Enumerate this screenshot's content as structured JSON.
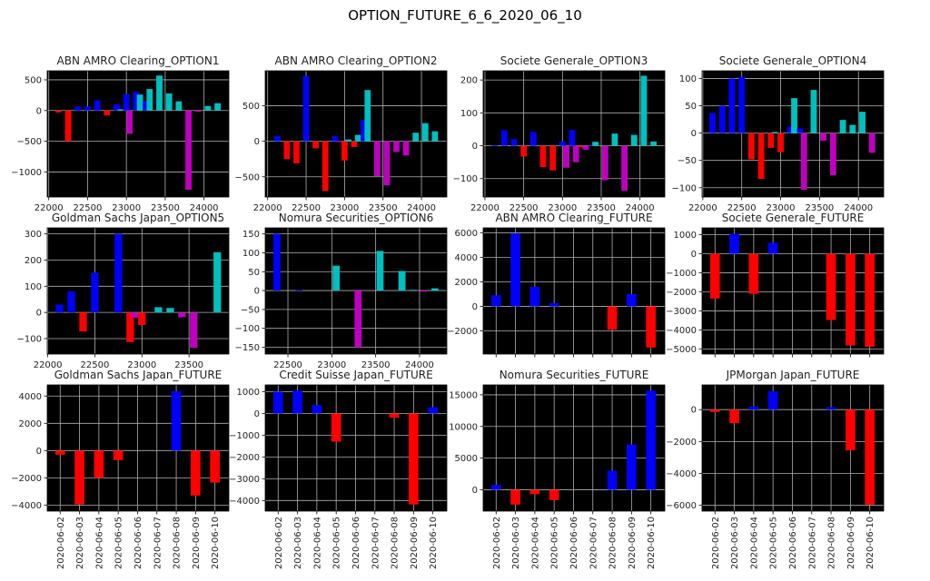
{
  "figure_title": "OPTION_FUTURE_6_6_2020_06_10",
  "colors": {
    "b": "#0000ff",
    "r": "#ff0000",
    "m": "#bf00bf",
    "c": "#00bfbf",
    "background": "#000000",
    "grid": "#b0b0b0"
  },
  "chart_data": [
    {
      "type": "bar",
      "title": "ABN AMRO Clearing_OPTION1",
      "xlim": [
        21980,
        24320
      ],
      "ylim": [
        -1407,
        647
      ],
      "xticks": [
        22000,
        22500,
        23000,
        23500,
        24000
      ],
      "yticks": [
        -1000,
        -500,
        0,
        500
      ],
      "bar_width": 80,
      "bars": [
        [
          22125,
          -30,
          "r"
        ],
        [
          22250,
          -500,
          "r"
        ],
        [
          22375,
          65,
          "b"
        ],
        [
          22500,
          65,
          "b"
        ],
        [
          22625,
          165,
          "b"
        ],
        [
          22750,
          -80,
          "r"
        ],
        [
          22875,
          100,
          "b"
        ],
        [
          22925,
          20,
          "c"
        ],
        [
          23000,
          270,
          "b"
        ],
        [
          23040,
          -380,
          "m"
        ],
        [
          23125,
          300,
          "b"
        ],
        [
          23175,
          260,
          "c"
        ],
        [
          23250,
          150,
          "b"
        ],
        [
          23300,
          350,
          "c"
        ],
        [
          23425,
          570,
          "c"
        ],
        [
          23550,
          280,
          "c"
        ],
        [
          23675,
          150,
          "c"
        ],
        [
          23800,
          -1290,
          "m"
        ],
        [
          23925,
          -20,
          "m"
        ],
        [
          24050,
          75,
          "c"
        ],
        [
          24175,
          120,
          "c"
        ]
      ]
    },
    {
      "type": "bar",
      "title": "ABN AMRO Clearing_OPTION2",
      "xlim": [
        21968,
        24330
      ],
      "ylim": [
        -784,
        991
      ],
      "xticks": [
        22000,
        22500,
        23000,
        23500,
        24000
      ],
      "yticks": [
        -500,
        0,
        500
      ],
      "bar_width": 80,
      "bars": [
        [
          22125,
          75,
          "b"
        ],
        [
          22250,
          -250,
          "r"
        ],
        [
          22375,
          -310,
          "r"
        ],
        [
          22500,
          920,
          "b"
        ],
        [
          22625,
          -100,
          "r"
        ],
        [
          22750,
          -700,
          "r"
        ],
        [
          22875,
          70,
          "b"
        ],
        [
          22925,
          -10,
          "m"
        ],
        [
          23000,
          -270,
          "r"
        ],
        [
          23050,
          25,
          "c"
        ],
        [
          23125,
          -80,
          "r"
        ],
        [
          23175,
          90,
          "c"
        ],
        [
          23250,
          300,
          "b"
        ],
        [
          23300,
          720,
          "c"
        ],
        [
          23425,
          -490,
          "m"
        ],
        [
          23550,
          -620,
          "m"
        ],
        [
          23675,
          -150,
          "m"
        ],
        [
          23800,
          -200,
          "m"
        ],
        [
          23925,
          120,
          "c"
        ],
        [
          24050,
          255,
          "c"
        ],
        [
          24175,
          140,
          "c"
        ]
      ]
    },
    {
      "type": "bar",
      "title": "Societe Generale_OPTION3",
      "xlim": [
        21977,
        24320
      ],
      "ylim": [
        -156,
        228
      ],
      "xticks": [
        22000,
        22500,
        23000,
        23500,
        24000
      ],
      "yticks": [
        -100,
        0,
        100,
        200
      ],
      "bar_width": 80,
      "bars": [
        [
          22125,
          2,
          "b"
        ],
        [
          22250,
          47,
          "b"
        ],
        [
          22375,
          20,
          "b"
        ],
        [
          22500,
          -33,
          "r"
        ],
        [
          22625,
          42,
          "b"
        ],
        [
          22750,
          -65,
          "r"
        ],
        [
          22875,
          -75,
          "r"
        ],
        [
          23000,
          13,
          "b"
        ],
        [
          23050,
          -67,
          "m"
        ],
        [
          23125,
          48,
          "b"
        ],
        [
          23175,
          -50,
          "m"
        ],
        [
          23250,
          -5,
          "r"
        ],
        [
          23300,
          -12,
          "m"
        ],
        [
          23375,
          2,
          "b"
        ],
        [
          23425,
          12,
          "c"
        ],
        [
          23550,
          -105,
          "m"
        ],
        [
          23675,
          37,
          "c"
        ],
        [
          23800,
          -137,
          "m"
        ],
        [
          23925,
          33,
          "c"
        ],
        [
          24050,
          213,
          "c"
        ],
        [
          24175,
          13,
          "c"
        ]
      ]
    },
    {
      "type": "bar",
      "title": "Societe Generale_OPTION4",
      "xlim": [
        21990,
        24324
      ],
      "ylim": [
        -117,
        114
      ],
      "xticks": [
        22000,
        22500,
        23000,
        23500,
        24000
      ],
      "yticks": [
        -100,
        -50,
        0,
        50,
        100
      ],
      "bar_width": 80,
      "bars": [
        [
          22125,
          37,
          "b"
        ],
        [
          22250,
          50,
          "b"
        ],
        [
          22375,
          100,
          "b"
        ],
        [
          22500,
          103,
          "b"
        ],
        [
          22625,
          -48,
          "r"
        ],
        [
          22750,
          -84,
          "r"
        ],
        [
          22875,
          -27,
          "r"
        ],
        [
          22925,
          2,
          "c"
        ],
        [
          23000,
          -35,
          "r"
        ],
        [
          23125,
          12,
          "b"
        ],
        [
          23175,
          64,
          "c"
        ],
        [
          23250,
          8,
          "b"
        ],
        [
          23300,
          -104,
          "m"
        ],
        [
          23425,
          79,
          "c"
        ],
        [
          23550,
          -14,
          "m"
        ],
        [
          23675,
          -77,
          "m"
        ],
        [
          23800,
          24,
          "c"
        ],
        [
          23925,
          15,
          "c"
        ],
        [
          24050,
          39,
          "c"
        ],
        [
          24175,
          -36,
          "m"
        ]
      ]
    },
    {
      "type": "bar",
      "title": "Goldman Sachs Japan_OPTION5",
      "xlim": [
        21994,
        23923
      ],
      "ylim": [
        -159,
        323
      ],
      "xticks": [
        22000,
        22500,
        23000,
        23500
      ],
      "yticks": [
        -100,
        0,
        100,
        200,
        300
      ],
      "bar_width": 80,
      "bars": [
        [
          22125,
          30,
          "b"
        ],
        [
          22250,
          80,
          "b"
        ],
        [
          22375,
          -73,
          "r"
        ],
        [
          22500,
          152,
          "b"
        ],
        [
          22750,
          300,
          "b"
        ],
        [
          22875,
          -113,
          "r"
        ],
        [
          22925,
          -20,
          "m"
        ],
        [
          23000,
          -48,
          "r"
        ],
        [
          23175,
          20,
          "c"
        ],
        [
          23300,
          17,
          "c"
        ],
        [
          23425,
          -18,
          "m"
        ],
        [
          23550,
          -135,
          "m"
        ],
        [
          23800,
          230,
          "c"
        ]
      ]
    },
    {
      "type": "bar",
      "title": "Nomura Securities_OPTION6",
      "xlim": [
        22241,
        24311
      ],
      "ylim": [
        -168,
        166
      ],
      "xticks": [
        22500,
        23000,
        23500,
        24000
      ],
      "yticks": [
        -150,
        -100,
        -50,
        0,
        50,
        100,
        150
      ],
      "bar_width": 80,
      "bars": [
        [
          22375,
          150,
          "b"
        ],
        [
          22625,
          2,
          "b"
        ],
        [
          23050,
          66,
          "c"
        ],
        [
          23300,
          -150,
          "m"
        ],
        [
          23550,
          105,
          "c"
        ],
        [
          23800,
          52,
          "c"
        ],
        [
          23925,
          2,
          "c"
        ],
        [
          24050,
          -3,
          "m"
        ],
        [
          24175,
          6,
          "c"
        ]
      ]
    },
    {
      "type": "bar",
      "title": "ABN AMRO Clearing_FUTURE",
      "categories": [
        "2020-06-02",
        "2020-06-03",
        "2020-06-04",
        "2020-06-05",
        "2020-06-06",
        "2020-06-07",
        "2020-06-08",
        "2020-06-09",
        "2020-06-10"
      ],
      "show_xlabels": false,
      "ylim": [
        -3885,
        6393
      ],
      "yticks": [
        -2000,
        0,
        2000,
        4000,
        6000
      ],
      "values": [
        900,
        5950,
        1600,
        250,
        0,
        0,
        -1900,
        1000,
        -3350
      ]
    },
    {
      "type": "bar",
      "title": "Societe Generale_FUTURE",
      "categories": [
        "2020-06-02",
        "2020-06-03",
        "2020-06-04",
        "2020-06-05",
        "2020-06-06",
        "2020-06-07",
        "2020-06-08",
        "2020-06-09",
        "2020-06-10"
      ],
      "show_xlabels": false,
      "ylim": [
        -5270,
        1365
      ],
      "yticks": [
        -5000,
        -4000,
        -3000,
        -2000,
        -1000,
        0,
        1000
      ],
      "values": [
        -2350,
        1050,
        -2100,
        580,
        0,
        0,
        -3480,
        -4820,
        -4880
      ]
    },
    {
      "type": "bar",
      "title": "Goldman Sachs Japan_FUTURE",
      "categories": [
        "2020-06-02",
        "2020-06-03",
        "2020-06-04",
        "2020-06-05",
        "2020-06-06",
        "2020-06-07",
        "2020-06-08",
        "2020-06-09",
        "2020-06-10"
      ],
      "show_xlabels": true,
      "ylim": [
        -4442,
        4818
      ],
      "yticks": [
        -4000,
        -2000,
        0,
        2000,
        4000
      ],
      "values": [
        -300,
        -3950,
        -2000,
        -700,
        0,
        0,
        4350,
        -3300,
        -2350
      ]
    },
    {
      "type": "bar",
      "title": "Credit Suisse Japan_FUTURE",
      "categories": [
        "2020-06-02",
        "2020-06-03",
        "2020-06-04",
        "2020-06-05",
        "2020-06-06",
        "2020-06-07",
        "2020-06-08",
        "2020-06-09",
        "2020-06-10"
      ],
      "show_xlabels": true,
      "ylim": [
        -4486,
        1306
      ],
      "yticks": [
        -4000,
        -3000,
        -2000,
        -1000,
        0,
        1000
      ],
      "values": [
        1000,
        1050,
        380,
        -1300,
        0,
        0,
        -200,
        -4180,
        280
      ]
    },
    {
      "type": "bar",
      "title": "Nomura Securities_FUTURE",
      "categories": [
        "2020-06-02",
        "2020-06-03",
        "2020-06-04",
        "2020-06-05",
        "2020-06-06",
        "2020-06-07",
        "2020-06-08",
        "2020-06-09",
        "2020-06-10"
      ],
      "show_xlabels": true,
      "ylim": [
        -3380,
        16570
      ],
      "yticks": [
        0,
        5000,
        10000,
        15000
      ],
      "values": [
        750,
        -2350,
        -700,
        -1650,
        0,
        0,
        3000,
        7150,
        15650
      ]
    },
    {
      "type": "bar",
      "title": "JPMorgan Japan_FUTURE",
      "categories": [
        "2020-06-02",
        "2020-06-03",
        "2020-06-04",
        "2020-06-05",
        "2020-06-06",
        "2020-06-07",
        "2020-06-08",
        "2020-06-09",
        "2020-06-10"
      ],
      "show_xlabels": true,
      "ylim": [
        -6358,
        1547
      ],
      "yticks": [
        -6000,
        -4000,
        -2000,
        0
      ],
      "values": [
        -150,
        -850,
        200,
        1150,
        0,
        0,
        150,
        -2550,
        -5950
      ]
    }
  ]
}
